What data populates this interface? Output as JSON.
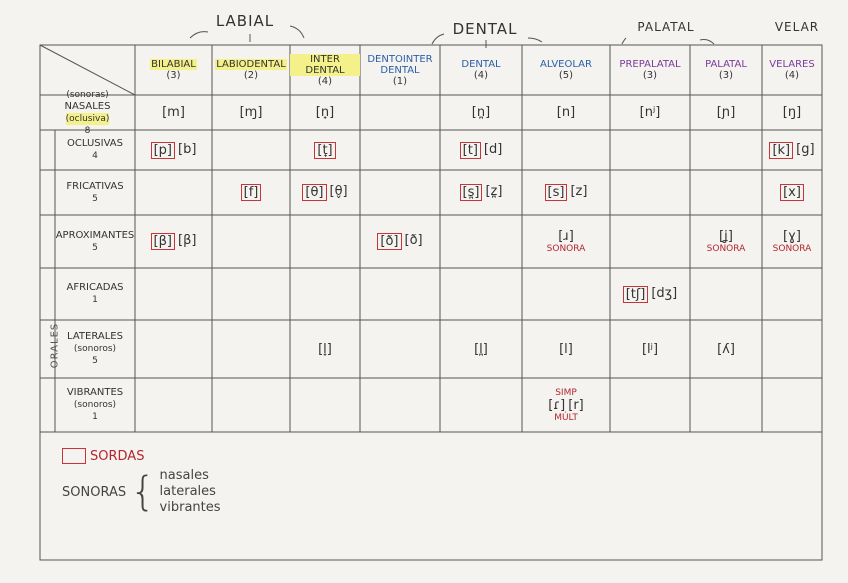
{
  "groups": [
    {
      "label": "LABIAL"
    },
    {
      "label": "DENTAL"
    },
    {
      "label": "PALATAL"
    },
    {
      "label": "VELAR"
    }
  ],
  "columns": [
    {
      "name": "BILABIAL",
      "count": "(3)"
    },
    {
      "name": "LABIODENTAL",
      "count": "(2)"
    },
    {
      "name": "INTER DENTAL",
      "count": "(4)"
    },
    {
      "name": "DENTOINTER DENTAL",
      "count": "(1)"
    },
    {
      "name": "DENTAL",
      "count": "(4)"
    },
    {
      "name": "ALVEOLAR",
      "count": "(5)"
    },
    {
      "name": "PREPALATAL",
      "count": "(3)"
    },
    {
      "name": "PALATAL",
      "count": "(3)"
    },
    {
      "name": "VELARES",
      "count": "(4)"
    }
  ],
  "side_label": "ORALES",
  "rows": [
    {
      "label": "NASALES",
      "prefix": "(sonoras)",
      "suffix": "(oclusiva)",
      "count": "8",
      "cells": {
        "0": {
          "items": [
            {
              "text": "[m]",
              "sorda": false
            }
          ]
        },
        "1": {
          "items": [
            {
              "text": "[ɱ]",
              "sorda": false
            }
          ]
        },
        "2": {
          "items": [
            {
              "text": "[n̟]",
              "sorda": false
            }
          ]
        },
        "4": {
          "items": [
            {
              "text": "[n̪]",
              "sorda": false
            }
          ]
        },
        "5": {
          "items": [
            {
              "text": "[n]",
              "sorda": false
            }
          ]
        },
        "6": {
          "items": [
            {
              "text": "[nʲ]",
              "sorda": false
            }
          ]
        },
        "7": {
          "items": [
            {
              "text": "[ɲ]",
              "sorda": false
            }
          ]
        },
        "8": {
          "items": [
            {
              "text": "[ŋ]",
              "sorda": false
            }
          ]
        }
      }
    },
    {
      "label": "OCLUSIVAS",
      "count": "4",
      "cells": {
        "0": {
          "items": [
            {
              "text": "[p]",
              "sorda": true
            },
            {
              "text": "[b]",
              "sorda": false
            }
          ]
        },
        "2": {
          "items": [
            {
              "text": "[t̟]",
              "sorda": true
            }
          ]
        },
        "4": {
          "items": [
            {
              "text": "[t]",
              "sorda": true
            },
            {
              "text": "[d]",
              "sorda": false
            }
          ]
        },
        "8": {
          "items": [
            {
              "text": "[k]",
              "sorda": true
            },
            {
              "text": "[g]",
              "sorda": false
            }
          ]
        }
      }
    },
    {
      "label": "FRICATIVAS",
      "count": "5",
      "cells": {
        "1": {
          "items": [
            {
              "text": "[f]",
              "sorda": true
            }
          ]
        },
        "2": {
          "items": [
            {
              "text": "[θ]",
              "sorda": true
            },
            {
              "text": "[θ̬]",
              "sorda": false
            }
          ]
        },
        "4": {
          "items": [
            {
              "text": "[s̪]",
              "sorda": true
            },
            {
              "text": "[z̪]",
              "sorda": false
            }
          ]
        },
        "5": {
          "items": [
            {
              "text": "[s]",
              "sorda": true
            },
            {
              "text": "[z]",
              "sorda": false
            }
          ]
        },
        "8": {
          "items": [
            {
              "text": "[x]",
              "sorda": true
            }
          ]
        }
      }
    },
    {
      "label": "APROXIMANTES",
      "count": "5",
      "cells": {
        "0": {
          "items": [
            {
              "text": "[β]",
              "sorda": true
            },
            {
              "text": "[β]",
              "sorda": false
            }
          ]
        },
        "3": {
          "items": [
            {
              "text": "[ð]",
              "sorda": true
            },
            {
              "text": "[ð]",
              "sorda": false
            }
          ]
        },
        "5": {
          "items": [
            {
              "text": "[ɹ]",
              "sorda": false
            }
          ],
          "note": "SONORA"
        },
        "7": {
          "items": [
            {
              "text": "[ʝ]",
              "sorda": false
            }
          ],
          "note": "SONORA"
        },
        "8": {
          "items": [
            {
              "text": "[ɣ]",
              "sorda": false
            }
          ],
          "note": "SONORA"
        }
      }
    },
    {
      "label": "AFRICADAS",
      "count": "1",
      "cells": {
        "6": {
          "items": [
            {
              "text": "[tʃ]",
              "sorda": true
            },
            {
              "text": "[dʒ]",
              "sorda": false
            }
          ]
        }
      }
    },
    {
      "label": "LATERALES",
      "suffix": "(sonoros)",
      "count": "5",
      "cells": {
        "2": {
          "items": [
            {
              "text": "[l̟]",
              "sorda": false
            }
          ]
        },
        "4": {
          "items": [
            {
              "text": "[l̪]",
              "sorda": false
            }
          ]
        },
        "5": {
          "items": [
            {
              "text": "[l]",
              "sorda": false
            }
          ]
        },
        "6": {
          "items": [
            {
              "text": "[lʲ]",
              "sorda": false
            }
          ]
        },
        "7": {
          "items": [
            {
              "text": "[ʎ]",
              "sorda": false
            }
          ]
        }
      }
    },
    {
      "label": "VIBRANTES",
      "suffix": "(sonoros)",
      "count": "1",
      "cells": {
        "5": {
          "pre": "SIMP",
          "items": [
            {
              "text": "[ɾ]",
              "sorda": false
            },
            {
              "text": "[r]",
              "sorda": false
            }
          ],
          "note": "MÚLT"
        }
      }
    }
  ],
  "legend": {
    "sordas": "SORDAS",
    "sonoras": "SONORAS",
    "sonoras_list": [
      "nasales",
      "laterales",
      "vibrantes"
    ]
  }
}
